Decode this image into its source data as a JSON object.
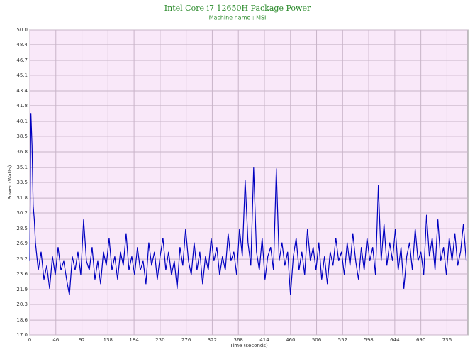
{
  "chart_data": {
    "type": "line",
    "title": "Intel Core i7 12650H Package Power",
    "subtitle": "Machine name : MSI",
    "x_label": "Time (seconds)",
    "y_label": "Power (Watts)",
    "xlim": [
      0,
      773
    ],
    "xticks": [
      0,
      46,
      92,
      138,
      184,
      230,
      276,
      322,
      368,
      414,
      460,
      506,
      552,
      598,
      644,
      690,
      736
    ],
    "ylim": [
      17,
      50
    ],
    "yticks": [
      {
        "value": 17,
        "label": "17.0"
      },
      18.6,
      20.3,
      21.9,
      23.6,
      25.2,
      26.9,
      28.5,
      30.2,
      31.8,
      33.5,
      35.1,
      36.8,
      38.5,
      40.1,
      41.8,
      43.4,
      45.1,
      46.7,
      48.4,
      {
        "value": 50,
        "label": "50.0"
      }
    ],
    "grid": true,
    "x": [
      0,
      2,
      4,
      6,
      8,
      10,
      15,
      20,
      25,
      30,
      35,
      40,
      45,
      50,
      55,
      60,
      65,
      70,
      75,
      80,
      85,
      90,
      95,
      100,
      105,
      110,
      115,
      120,
      125,
      130,
      135,
      140,
      145,
      150,
      155,
      160,
      165,
      170,
      175,
      180,
      185,
      190,
      195,
      200,
      205,
      210,
      215,
      220,
      225,
      230,
      235,
      240,
      245,
      250,
      255,
      260,
      265,
      270,
      275,
      280,
      285,
      290,
      295,
      300,
      305,
      310,
      315,
      320,
      325,
      330,
      335,
      340,
      345,
      350,
      355,
      360,
      365,
      370,
      375,
      380,
      385,
      390,
      395,
      400,
      405,
      410,
      415,
      420,
      425,
      430,
      435,
      440,
      445,
      450,
      455,
      460,
      465,
      470,
      475,
      480,
      485,
      490,
      495,
      500,
      505,
      510,
      515,
      520,
      525,
      530,
      535,
      540,
      545,
      550,
      555,
      560,
      565,
      570,
      575,
      580,
      585,
      590,
      595,
      600,
      605,
      610,
      615,
      620,
      625,
      630,
      635,
      640,
      645,
      650,
      655,
      660,
      665,
      670,
      675,
      680,
      685,
      690,
      695,
      700,
      705,
      710,
      715,
      720,
      725,
      730,
      735,
      740,
      745,
      750,
      755,
      760,
      765,
      770
    ],
    "series": [
      {
        "color": "#0000c0",
        "values": [
          25.0,
          41.0,
          37.5,
          31.0,
          29.5,
          27.0,
          24.0,
          26.0,
          23.0,
          24.5,
          22.0,
          25.5,
          23.5,
          26.5,
          24.0,
          25.0,
          23.0,
          21.3,
          25.5,
          24.0,
          26.0,
          23.5,
          29.5,
          25.0,
          24.0,
          26.5,
          23.0,
          25.0,
          22.5,
          26.0,
          24.5,
          27.5,
          24.0,
          25.5,
          23.0,
          26.0,
          24.5,
          28.0,
          24.0,
          25.5,
          23.5,
          26.5,
          24.0,
          25.0,
          22.5,
          27.0,
          24.5,
          26.0,
          23.0,
          25.5,
          27.5,
          24.0,
          26.0,
          23.5,
          25.0,
          22.0,
          26.5,
          24.5,
          28.5,
          25.0,
          23.5,
          27.0,
          24.0,
          26.0,
          22.5,
          25.5,
          24.0,
          27.5,
          25.0,
          26.5,
          23.5,
          25.5,
          24.0,
          28.0,
          25.0,
          26.0,
          23.5,
          28.5,
          25.5,
          33.8,
          27.0,
          24.5,
          35.1,
          26.0,
          24.0,
          27.5,
          23.0,
          25.5,
          26.5,
          24.0,
          35.0,
          25.0,
          27.0,
          24.5,
          26.0,
          21.3,
          25.5,
          27.5,
          24.0,
          26.0,
          23.5,
          28.5,
          25.0,
          26.5,
          24.0,
          27.0,
          23.0,
          25.5,
          22.5,
          26.0,
          24.5,
          27.5,
          25.0,
          26.0,
          23.5,
          27.0,
          24.5,
          28.0,
          25.0,
          23.0,
          26.5,
          24.0,
          27.5,
          25.0,
          26.5,
          23.5,
          33.2,
          25.0,
          29.0,
          24.5,
          27.0,
          25.0,
          28.5,
          24.0,
          26.5,
          22.0,
          25.5,
          27.0,
          24.0,
          28.5,
          25.0,
          26.0,
          23.5,
          30.0,
          25.5,
          27.5,
          24.0,
          29.5,
          25.0,
          26.5,
          23.5,
          27.5,
          25.0,
          28.0,
          24.5,
          26.0,
          29.0,
          25.0
        ]
      }
    ]
  }
}
